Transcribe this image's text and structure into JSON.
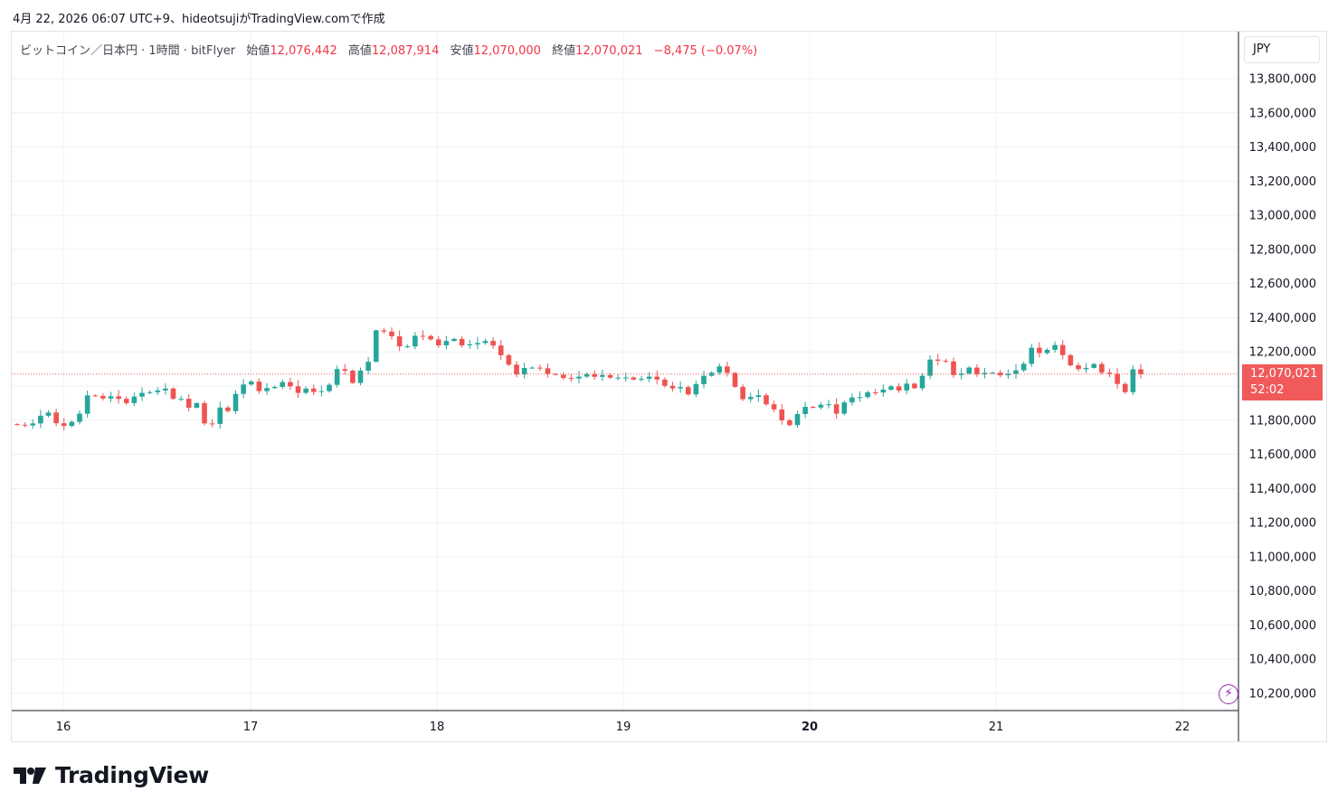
{
  "header": {
    "created_text": "4月 22, 2026 06:07 UTC+9、hideotsujiがTradingView.comで作成"
  },
  "legend": {
    "symbol": "ビットコイン／日本円 · 1時間 · bitFlyer",
    "open_label": "始値",
    "open_value": "12,076,442",
    "high_label": "高値",
    "high_value": "12,087,914",
    "low_label": "安値",
    "low_value": "12,070,000",
    "close_label": "終値",
    "close_value": "12,070,021",
    "change": "−8,475 (−0.07%)"
  },
  "currency_button": "JPY",
  "last_price": {
    "value": "12,070,021",
    "countdown": "52:02"
  },
  "icons": {
    "fast_icon": "lightning-icon",
    "logo": "tradingview-logo-icon"
  },
  "brand": {
    "name": "TradingView"
  },
  "colors": {
    "up": "#26a69a",
    "down": "#ef5350",
    "grid": "#eef1f5",
    "last_price": "#f05a5a",
    "text": "#131722"
  },
  "chart_data": {
    "type": "candlestick",
    "title": "ビットコイン／日本円 · 1時間 · bitFlyer",
    "x_tick_labels": [
      {
        "label": "16",
        "bold": false
      },
      {
        "label": "17",
        "bold": false
      },
      {
        "label": "18",
        "bold": false
      },
      {
        "label": "19",
        "bold": false
      },
      {
        "label": "20",
        "bold": true
      },
      {
        "label": "21",
        "bold": false
      },
      {
        "label": "22",
        "bold": false
      }
    ],
    "y_ticks": [
      10200000,
      10400000,
      10600000,
      10800000,
      11000000,
      11200000,
      11400000,
      11600000,
      11800000,
      12000000,
      12200000,
      12400000,
      12600000,
      12800000,
      13000000,
      13200000,
      13400000,
      13600000,
      13800000
    ],
    "y_tick_labels": [
      "10,200,000",
      "10,400,000",
      "10,600,000",
      "10,800,000",
      "11,000,000",
      "11,200,000",
      "11,400,000",
      "11,600,000",
      "11,800,000",
      "12,000,000",
      "12,200,000",
      "12,400,000",
      "12,600,000",
      "12,800,000",
      "13,000,000",
      "13,200,000",
      "13,400,000",
      "13,600,000",
      "13,800,000"
    ],
    "ylim": [
      10100000,
      13900000
    ],
    "grid": true,
    "last_close": 12070021,
    "hourly_close": [
      11773000,
      11769000,
      11781000,
      11826000,
      11845000,
      11782000,
      11766000,
      11790000,
      11838000,
      11945000,
      11942000,
      11927000,
      11940000,
      11925000,
      11900000,
      11938000,
      11960000,
      11964000,
      11974000,
      11985000,
      11925000,
      11925000,
      11873000,
      11900000,
      11781000,
      11778000,
      11874000,
      11853000,
      11954000,
      12009000,
      12026000,
      11970000,
      11988000,
      11995000,
      12023000,
      11998000,
      11960000,
      11985000,
      11965000,
      11970000,
      12007000,
      12099000,
      12090000,
      12018000,
      12090000,
      12142000,
      12326000,
      12319000,
      12291000,
      12232000,
      12232000,
      12294000,
      12293000,
      12273000,
      12238000,
      12264000,
      12276000,
      12238000,
      12244000,
      12252000,
      12264000,
      12237000,
      12180000,
      12125000,
      12068000,
      12106000,
      12108000,
      12104000,
      12071000,
      12066000,
      12047000,
      12044000,
      12055000,
      12069000,
      12054000,
      12064000,
      12049000,
      12049000,
      12050000,
      12038000,
      12042000,
      12055000,
      12038000,
      12001000,
      11986000,
      11994000,
      11951000,
      12011000,
      12060000,
      12078000,
      12115000,
      12077000,
      11995000,
      11923000,
      11936000,
      11946000,
      11893000,
      11863000,
      11799000,
      11771000,
      11836000,
      11878000,
      11874000,
      11890000,
      11893000,
      11838000,
      11904000,
      11933000,
      11935000,
      11963000,
      11962000,
      11979000,
      11998000,
      11974000,
      12014000,
      11987000,
      12060000,
      12155000,
      12148000,
      12144000,
      12064000,
      12073000,
      12108000,
      12068000,
      12077000,
      12078000,
      12063000,
      12071000,
      12092000,
      12130000,
      12224000,
      12193000,
      12212000,
      12240000,
      12181000,
      12121000,
      12099000,
      12106000,
      12129000,
      12078000,
      12071000,
      12012000,
      11964000,
      12098000,
      12070021
    ],
    "series": [
      {
        "name": "BTC/JPY",
        "type": "candlestick"
      }
    ]
  }
}
